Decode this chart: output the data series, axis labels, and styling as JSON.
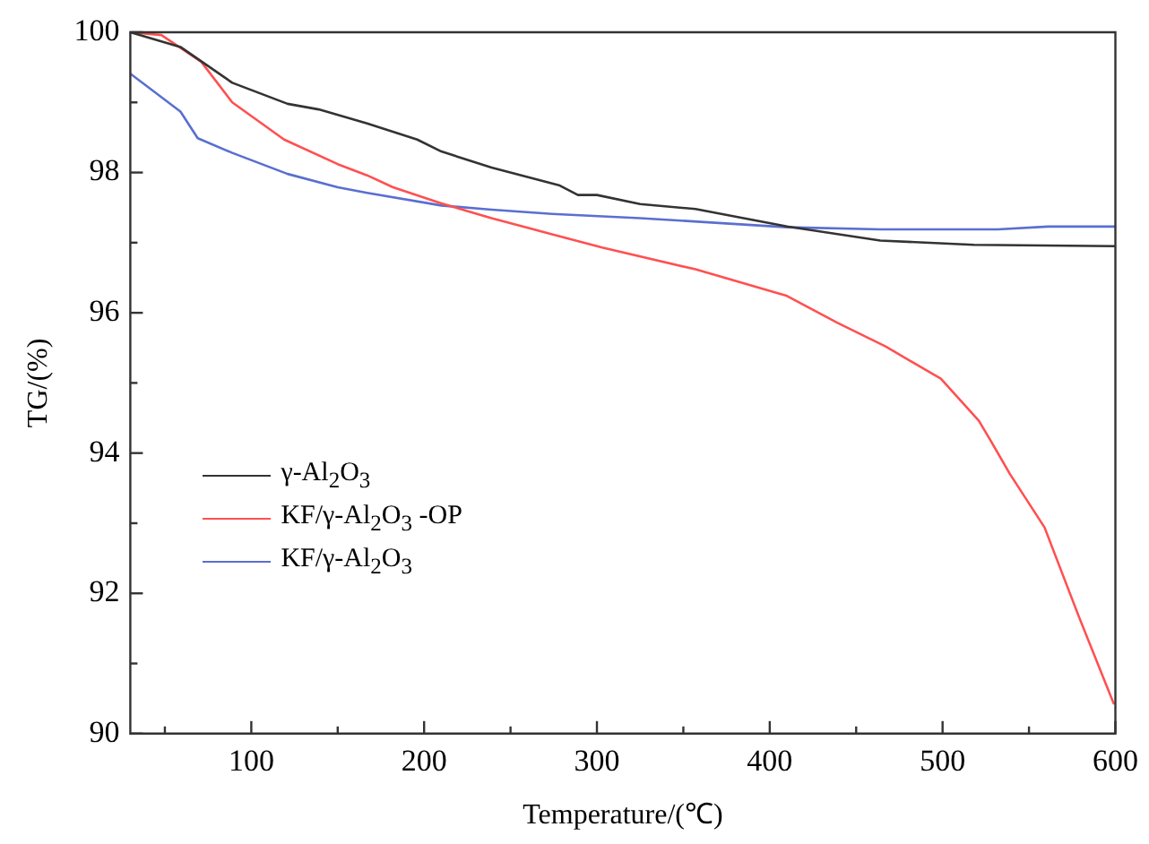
{
  "chart_data": {
    "type": "line",
    "xlabel": "Temperature/(℃)",
    "ylabel": "TG/(%)",
    "xlim": [
      30,
      600
    ],
    "ylim": [
      90,
      100
    ],
    "xticks": [
      {
        "value": 50,
        "label": null
      },
      100,
      {
        "value": 150,
        "label": null
      },
      200,
      {
        "value": 250,
        "label": null
      },
      300,
      {
        "value": 350,
        "label": null
      },
      400,
      {
        "value": 450,
        "label": null
      },
      500,
      {
        "value": 550,
        "label": null
      },
      600
    ],
    "yticks": [
      90,
      {
        "value": 91,
        "label": null
      },
      92,
      {
        "value": 93,
        "label": null
      },
      94,
      {
        "value": 95,
        "label": null
      },
      96,
      {
        "value": 97,
        "label": null
      },
      98,
      {
        "value": 99,
        "label": null
      },
      100
    ],
    "grid": false,
    "legend": "center left",
    "line_style": "solid",
    "marker": "none",
    "series": [
      {
        "name": "γ-Al$_{2}$O$_{3}$",
        "color": "#333333",
        "x": [
          30,
          59,
          89,
          121,
          139,
          167,
          196,
          210,
          239,
          278,
          289,
          300,
          325,
          357,
          410,
          464,
          518,
          600
        ],
        "values": [
          100,
          99.79,
          99.28,
          98.98,
          98.9,
          98.7,
          98.47,
          98.3,
          98.07,
          97.82,
          97.68,
          97.68,
          97.55,
          97.48,
          97.23,
          97.03,
          96.97,
          96.95
        ]
      },
      {
        "name": "KF/γ-Al$_{2}$O$_{3}$ -OP",
        "color": "#ff5050",
        "x": [
          30,
          48,
          71,
          89,
          119,
          150,
          167,
          182,
          210,
          239,
          274,
          303,
          357,
          410,
          439,
          467,
          499,
          521,
          528,
          539,
          559,
          579,
          599
        ],
        "values": [
          100,
          99.96,
          99.58,
          99.0,
          98.47,
          98.12,
          97.96,
          97.79,
          97.56,
          97.35,
          97.12,
          96.93,
          96.62,
          96.24,
          95.86,
          95.52,
          95.06,
          94.46,
          94.17,
          93.7,
          92.94,
          91.66,
          90.43
        ]
      },
      {
        "name": "KF/γ-Al$_{2}$O$_{3}$",
        "color": "#5a6fd0",
        "x": [
          30,
          59,
          69,
          89,
          121,
          150,
          167,
          210,
          239,
          274,
          325,
          410,
          464,
          532,
          561,
          600
        ],
        "values": [
          99.41,
          98.87,
          98.49,
          98.28,
          97.98,
          97.79,
          97.71,
          97.53,
          97.47,
          97.41,
          97.35,
          97.22,
          97.19,
          97.19,
          97.23,
          97.23
        ]
      }
    ]
  }
}
